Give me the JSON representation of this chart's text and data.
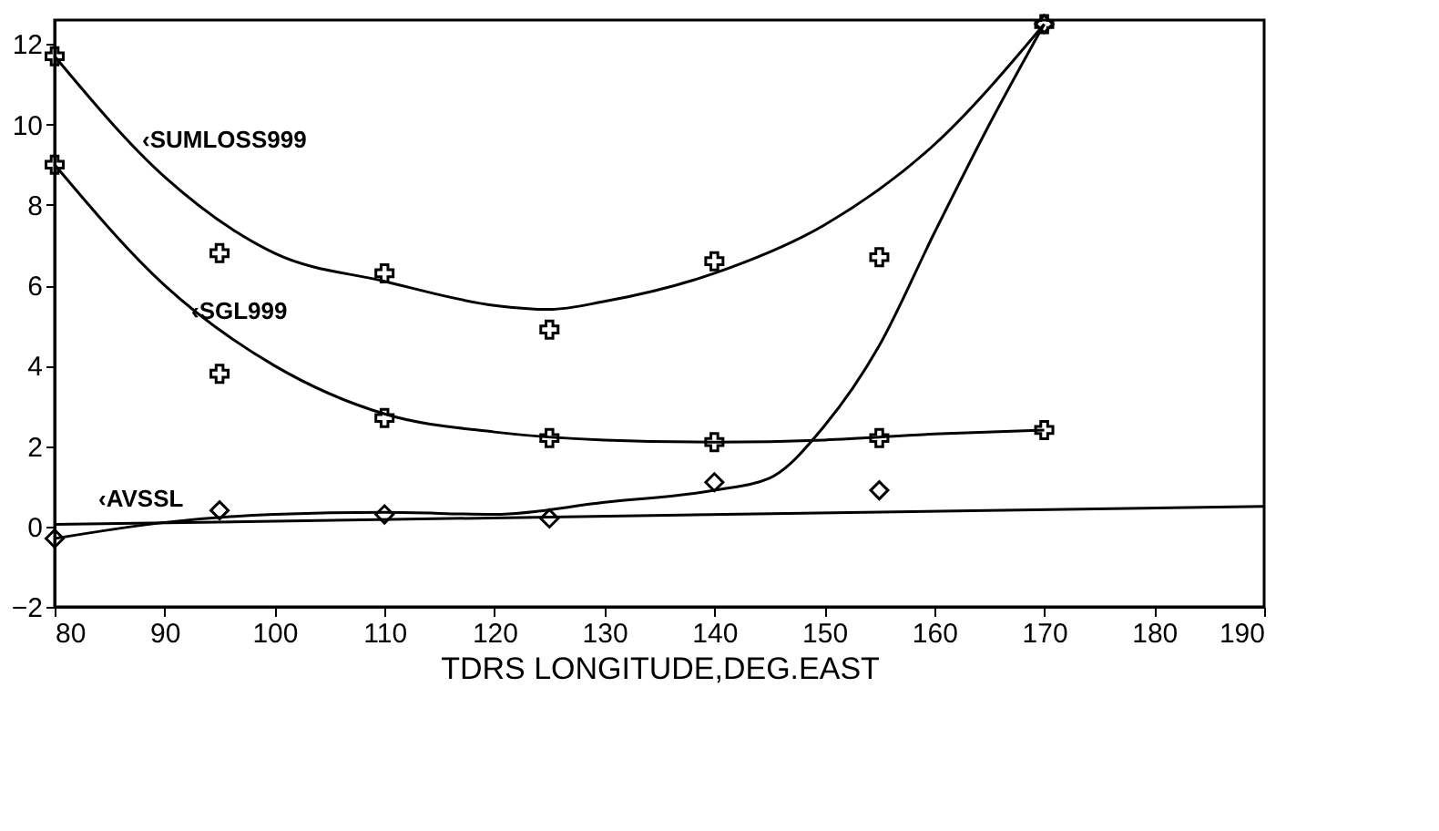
{
  "chart_data": {
    "type": "scatter",
    "xlabel": "TDRS LONGITUDE,DEG.EAST",
    "xlim": [
      80,
      190
    ],
    "xticks": [
      80,
      90,
      100,
      110,
      120,
      130,
      140,
      150,
      160,
      170,
      180,
      190
    ],
    "ylim": [
      -2,
      12.6
    ],
    "yticks": [
      -2,
      0,
      2,
      4,
      6,
      8,
      10,
      12
    ],
    "grid": false,
    "series": [
      {
        "marker": "cross",
        "color": "#000000",
        "x": [
          80,
          95,
          110,
          125,
          140,
          155,
          170
        ],
        "values": [
          11.7,
          6.8,
          6.3,
          4.9,
          6.6,
          6.7,
          12.5
        ]
      },
      {
        "marker": "cross",
        "color": "#000000",
        "x": [
          80,
          95,
          110,
          125,
          140,
          155,
          170
        ],
        "values": [
          9.0,
          3.8,
          2.7,
          2.2,
          2.1,
          2.2,
          2.4
        ]
      },
      {
        "marker": "diamond",
        "color": "#000000",
        "x": [
          80,
          95,
          110,
          125,
          140,
          155,
          170
        ],
        "values": [
          -0.3,
          0.4,
          0.3,
          0.2,
          1.1,
          0.9,
          12.5
        ]
      },
      {
        "type": "line",
        "marker": "none",
        "line_style": "solid",
        "color": "#000000",
        "x": [
          80,
          90,
          100,
          110,
          120,
          125,
          130,
          140,
          150,
          160,
          170
        ],
        "values": [
          11.7,
          8.7,
          6.8,
          6.1,
          5.5,
          5.4,
          5.6,
          6.3,
          7.5,
          9.5,
          12.5
        ]
      },
      {
        "type": "line",
        "marker": "none",
        "line_style": "solid",
        "color": "#000000",
        "x": [
          80,
          90,
          100,
          110,
          120,
          130,
          140,
          150,
          160,
          170
        ],
        "values": [
          9.0,
          6.0,
          4.0,
          2.8,
          2.35,
          2.15,
          2.1,
          2.15,
          2.3,
          2.4
        ]
      },
      {
        "type": "line",
        "marker": "none",
        "line_style": "solid",
        "color": "#000000",
        "x": [
          80,
          90,
          100,
          110,
          120,
          130,
          140,
          145,
          150,
          155,
          160,
          165,
          170
        ],
        "values": [
          -0.3,
          0.1,
          0.3,
          0.35,
          0.3,
          0.6,
          0.9,
          1.2,
          2.5,
          4.5,
          7.3,
          10,
          12.5
        ]
      },
      {
        "type": "line",
        "marker": "none",
        "line_style": "solid",
        "color": "#000000",
        "x": [
          80,
          190
        ],
        "values": [
          0.05,
          0.5
        ]
      }
    ],
    "annotations": [
      "‹SUMLOSS999",
      "‹SGL999",
      "‹AVSSL"
    ]
  }
}
